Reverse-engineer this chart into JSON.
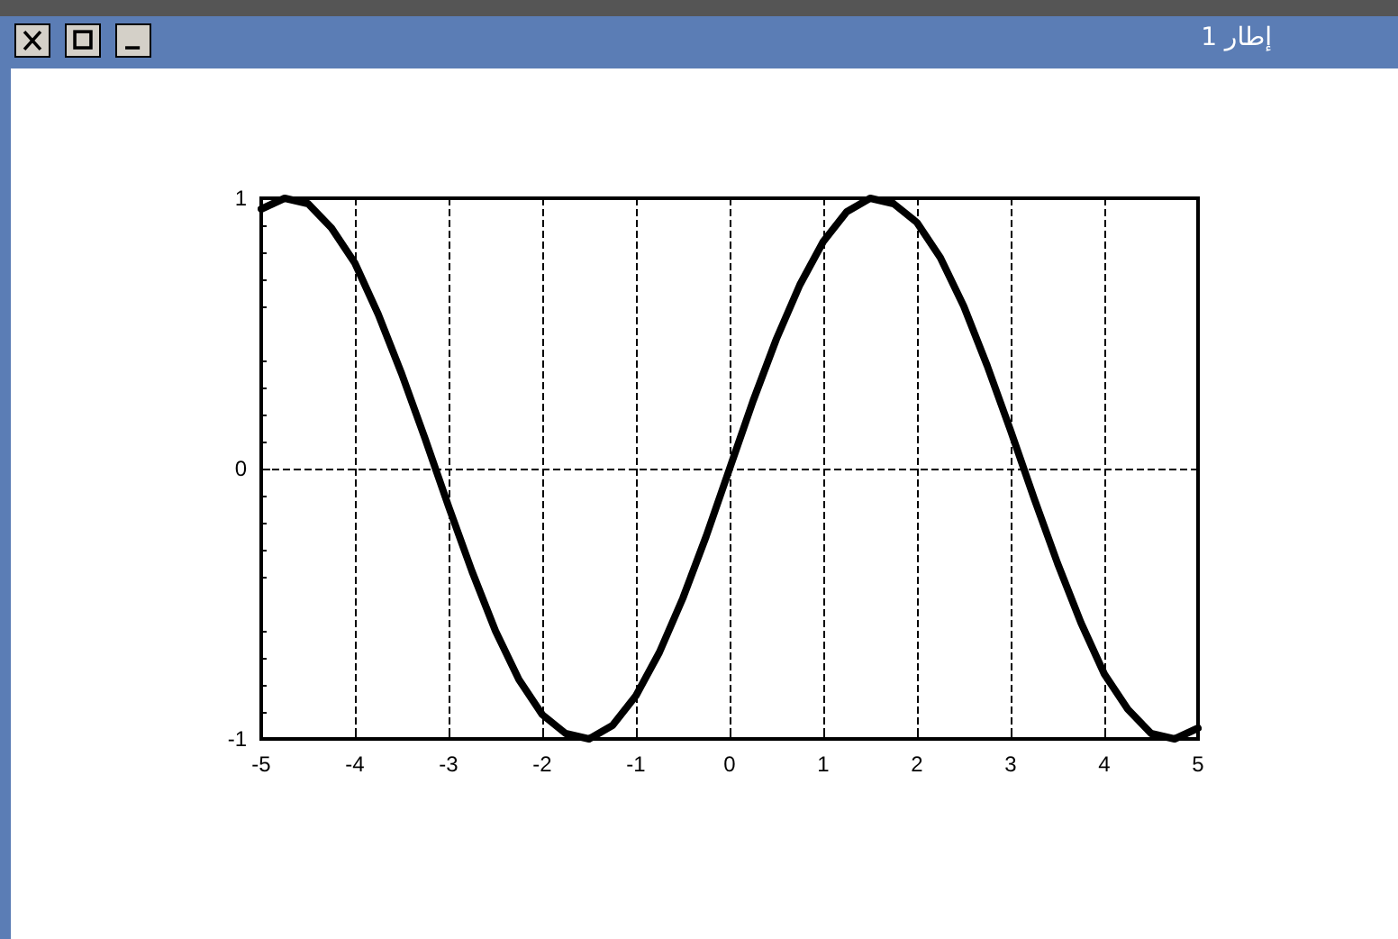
{
  "chart_data": {
    "type": "line",
    "title": "إطار 1",
    "x": [
      -5,
      -4.75,
      -4.5,
      -4.25,
      -4,
      -3.75,
      -3.5,
      -3.25,
      -3,
      -2.75,
      -2.5,
      -2.25,
      -2,
      -1.75,
      -1.5,
      -1.25,
      -1,
      -0.75,
      -0.5,
      -0.25,
      0,
      0.25,
      0.5,
      0.75,
      1,
      1.25,
      1.5,
      1.75,
      2,
      2.25,
      2.5,
      2.75,
      3,
      3.25,
      3.5,
      3.75,
      4,
      4.25,
      4.5,
      4.75,
      5
    ],
    "series": [
      {
        "color": "#000000",
        "values": [
          0.96,
          1.0,
          0.98,
          0.89,
          0.76,
          0.57,
          0.35,
          0.11,
          -0.14,
          -0.38,
          -0.6,
          -0.78,
          -0.91,
          -0.98,
          -1.0,
          -0.95,
          -0.84,
          -0.68,
          -0.48,
          -0.25,
          0,
          0.25,
          0.48,
          0.68,
          0.84,
          0.95,
          1.0,
          0.98,
          0.91,
          0.78,
          0.6,
          0.38,
          0.14,
          -0.11,
          -0.35,
          -0.57,
          -0.76,
          -0.89,
          -0.98,
          -1.0,
          -0.96
        ]
      }
    ],
    "xlim": [
      -5,
      5
    ],
    "xticks": [
      -5,
      -4,
      -3,
      -2,
      -1,
      0,
      1,
      2,
      3,
      4,
      5
    ],
    "ylim": [
      -1,
      1
    ],
    "yticks": [
      -1,
      0,
      1
    ],
    "grid": true,
    "marker": "none",
    "line_style": "solid"
  }
}
